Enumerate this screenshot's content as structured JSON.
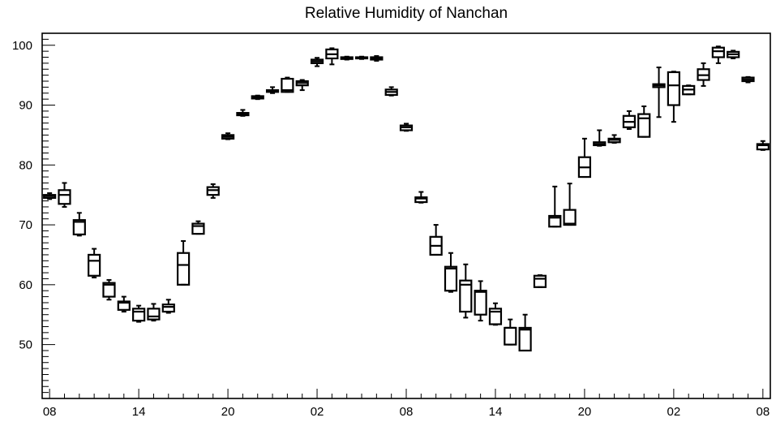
{
  "chart_data": {
    "type": "box",
    "title": "Relative Humidity of Nanchan",
    "xlabel": "",
    "ylabel": "",
    "x_tick_labels": [
      "08",
      "14",
      "20",
      "02",
      "08",
      "14",
      "20",
      "02",
      "08"
    ],
    "x_tick_positions": [
      0,
      6,
      12,
      18,
      24,
      30,
      36,
      42,
      48
    ],
    "x_range": [
      -0.5,
      48.5
    ],
    "ylim": [
      41,
      102
    ],
    "y_ticks": [
      50,
      60,
      70,
      80,
      90,
      100
    ],
    "grid": false,
    "boxes": [
      {
        "x": 0,
        "low": 74.3,
        "q1": 74.5,
        "median": 74.8,
        "q3": 75.0,
        "high": 75.3
      },
      {
        "x": 1,
        "low": 73.0,
        "q1": 73.5,
        "median": 75.0,
        "q3": 75.8,
        "high": 77.0
      },
      {
        "x": 2,
        "low": 68.2,
        "q1": 68.4,
        "median": 70.5,
        "q3": 70.8,
        "high": 72.0
      },
      {
        "x": 3,
        "low": 61.2,
        "q1": 61.5,
        "median": 64.0,
        "q3": 65.0,
        "high": 66.0
      },
      {
        "x": 4,
        "low": 57.5,
        "q1": 58.0,
        "median": 60.0,
        "q3": 60.3,
        "high": 60.8
      },
      {
        "x": 5,
        "low": 55.5,
        "q1": 55.8,
        "median": 57.0,
        "q3": 57.2,
        "high": 58.0
      },
      {
        "x": 6,
        "low": 53.8,
        "q1": 54.0,
        "median": 55.5,
        "q3": 56.0,
        "high": 56.5
      },
      {
        "x": 7,
        "low": 54.0,
        "q1": 54.2,
        "median": 54.7,
        "q3": 56.0,
        "high": 56.8
      },
      {
        "x": 8,
        "low": 55.3,
        "q1": 55.5,
        "median": 56.3,
        "q3": 56.7,
        "high": 57.5
      },
      {
        "x": 9,
        "low": 60.0,
        "q1": 60.0,
        "median": 63.3,
        "q3": 65.3,
        "high": 67.3
      },
      {
        "x": 10,
        "low": 68.5,
        "q1": 68.5,
        "median": 69.8,
        "q3": 70.2,
        "high": 70.6
      },
      {
        "x": 11,
        "low": 74.5,
        "q1": 75.0,
        "median": 75.8,
        "q3": 76.3,
        "high": 76.8
      },
      {
        "x": 12,
        "low": 84.3,
        "q1": 84.4,
        "median": 84.7,
        "q3": 85.0,
        "high": 85.3
      },
      {
        "x": 13,
        "low": 88.2,
        "q1": 88.3,
        "median": 88.5,
        "q3": 88.7,
        "high": 89.2
      },
      {
        "x": 14,
        "low": 91.0,
        "q1": 91.1,
        "median": 91.3,
        "q3": 91.5,
        "high": 91.6
      },
      {
        "x": 15,
        "low": 92.0,
        "q1": 92.2,
        "median": 92.3,
        "q3": 92.5,
        "high": 93.0
      },
      {
        "x": 16,
        "low": 92.2,
        "q1": 92.2,
        "median": 92.5,
        "q3": 94.4,
        "high": 94.6
      },
      {
        "x": 17,
        "low": 92.5,
        "q1": 93.3,
        "median": 93.7,
        "q3": 94.0,
        "high": 94.2
      },
      {
        "x": 18,
        "low": 96.5,
        "q1": 97.0,
        "median": 97.3,
        "q3": 97.6,
        "high": 97.9
      },
      {
        "x": 19,
        "low": 96.8,
        "q1": 97.8,
        "median": 98.5,
        "q3": 99.3,
        "high": 99.5
      },
      {
        "x": 20,
        "low": 97.6,
        "q1": 97.7,
        "median": 97.9,
        "q3": 98.0,
        "high": 98.1
      },
      {
        "x": 21,
        "low": 97.7,
        "q1": 97.8,
        "median": 97.9,
        "q3": 98.0,
        "high": 98.1
      },
      {
        "x": 22,
        "low": 97.4,
        "q1": 97.6,
        "median": 97.8,
        "q3": 98.0,
        "high": 98.2
      },
      {
        "x": 23,
        "low": 91.6,
        "q1": 91.7,
        "median": 92.2,
        "q3": 92.6,
        "high": 93.0
      },
      {
        "x": 24,
        "low": 85.7,
        "q1": 85.8,
        "median": 86.3,
        "q3": 86.6,
        "high": 86.9
      },
      {
        "x": 25,
        "low": 73.7,
        "q1": 73.8,
        "median": 74.4,
        "q3": 74.6,
        "high": 75.5
      },
      {
        "x": 26,
        "low": 65.0,
        "q1": 65.0,
        "median": 66.5,
        "q3": 68.0,
        "high": 70.0
      },
      {
        "x": 27,
        "low": 58.8,
        "q1": 59.0,
        "median": 62.7,
        "q3": 63.0,
        "high": 65.3
      },
      {
        "x": 28,
        "low": 54.5,
        "q1": 55.5,
        "median": 60.0,
        "q3": 60.7,
        "high": 63.4
      },
      {
        "x": 29,
        "low": 54.0,
        "q1": 55.0,
        "median": 58.8,
        "q3": 59.0,
        "high": 60.6
      },
      {
        "x": 30,
        "low": 53.3,
        "q1": 53.4,
        "median": 55.5,
        "q3": 56.0,
        "high": 56.9
      },
      {
        "x": 31,
        "low": 50.0,
        "q1": 50.0,
        "median": 52.8,
        "q3": 52.8,
        "high": 54.2
      },
      {
        "x": 32,
        "low": 49.0,
        "q1": 49.0,
        "median": 52.5,
        "q3": 52.8,
        "high": 55.0
      },
      {
        "x": 33,
        "low": 59.6,
        "q1": 59.6,
        "median": 61.0,
        "q3": 61.5,
        "high": 61.6
      },
      {
        "x": 34,
        "low": 69.7,
        "q1": 69.7,
        "median": 71.2,
        "q3": 71.5,
        "high": 76.4
      },
      {
        "x": 35,
        "low": 70.0,
        "q1": 70.0,
        "median": 70.2,
        "q3": 72.5,
        "high": 76.9
      },
      {
        "x": 36,
        "low": 78.0,
        "q1": 78.0,
        "median": 79.6,
        "q3": 81.3,
        "high": 84.4
      },
      {
        "x": 37,
        "low": 83.2,
        "q1": 83.3,
        "median": 83.5,
        "q3": 83.8,
        "high": 85.8
      },
      {
        "x": 38,
        "low": 83.7,
        "q1": 83.8,
        "median": 84.2,
        "q3": 84.4,
        "high": 85.0
      },
      {
        "x": 39,
        "low": 86.0,
        "q1": 86.3,
        "median": 87.2,
        "q3": 88.2,
        "high": 89.0
      },
      {
        "x": 40,
        "low": 84.7,
        "q1": 84.7,
        "median": 87.8,
        "q3": 88.5,
        "high": 89.8
      },
      {
        "x": 41,
        "low": 88.0,
        "q1": 93.0,
        "median": 93.3,
        "q3": 93.5,
        "high": 96.3
      },
      {
        "x": 42,
        "low": 87.2,
        "q1": 90.0,
        "median": 93.3,
        "q3": 95.5,
        "high": 95.6
      },
      {
        "x": 43,
        "low": 91.8,
        "q1": 91.8,
        "median": 92.6,
        "q3": 93.2,
        "high": 93.3
      },
      {
        "x": 44,
        "low": 93.2,
        "q1": 94.2,
        "median": 95.0,
        "q3": 96.0,
        "high": 97.0
      },
      {
        "x": 45,
        "low": 97.0,
        "q1": 98.0,
        "median": 99.0,
        "q3": 99.6,
        "high": 99.8
      },
      {
        "x": 46,
        "low": 97.8,
        "q1": 98.0,
        "median": 98.5,
        "q3": 98.9,
        "high": 99.1
      },
      {
        "x": 47,
        "low": 93.8,
        "q1": 94.0,
        "median": 94.3,
        "q3": 94.6,
        "high": 94.7
      },
      {
        "x": 48,
        "low": 82.5,
        "q1": 82.6,
        "median": 83.3,
        "q3": 83.5,
        "high": 84.0
      }
    ]
  }
}
